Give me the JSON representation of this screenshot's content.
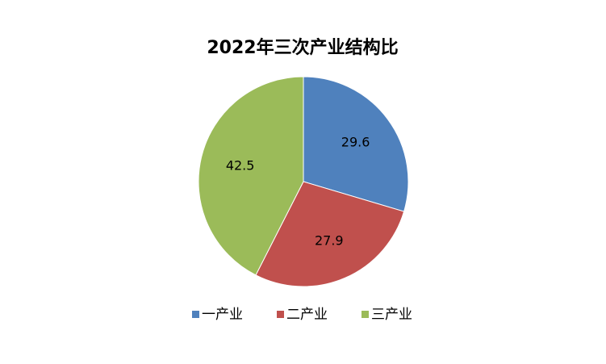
{
  "chart_data": {
    "type": "pie",
    "title": "2022年三次产业结构比",
    "categories": [
      "一产业",
      "二产业",
      "三产业"
    ],
    "values": [
      29.6,
      27.9,
      42.5
    ],
    "colors": [
      "#4f81bd",
      "#c0504d",
      "#9bbb59"
    ],
    "legend": "bottom"
  }
}
